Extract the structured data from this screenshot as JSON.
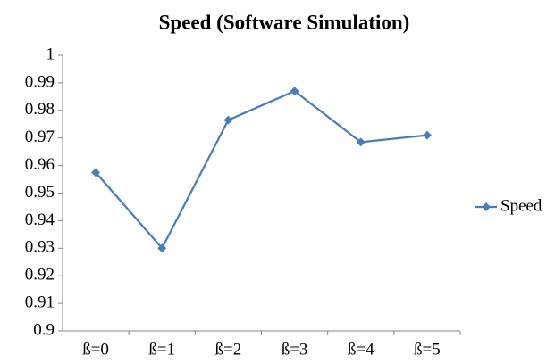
{
  "chart_data": {
    "type": "line",
    "title": "Speed (Software Simulation)",
    "categories": [
      "ß=0",
      "ß=1",
      "ß=2",
      "ß=3",
      "ß=4",
      "ß=5"
    ],
    "series": [
      {
        "name": "Speed",
        "color": "#4a7ebb",
        "values": [
          0.9575,
          0.93,
          0.9765,
          0.987,
          0.9685,
          0.971
        ]
      }
    ],
    "ylim": [
      0.9,
      1
    ],
    "yticks": [
      0.9,
      0.91,
      0.92,
      0.93,
      0.94,
      0.95,
      0.96,
      0.97,
      0.98,
      0.99,
      1
    ],
    "grid": false,
    "legend": "right"
  }
}
